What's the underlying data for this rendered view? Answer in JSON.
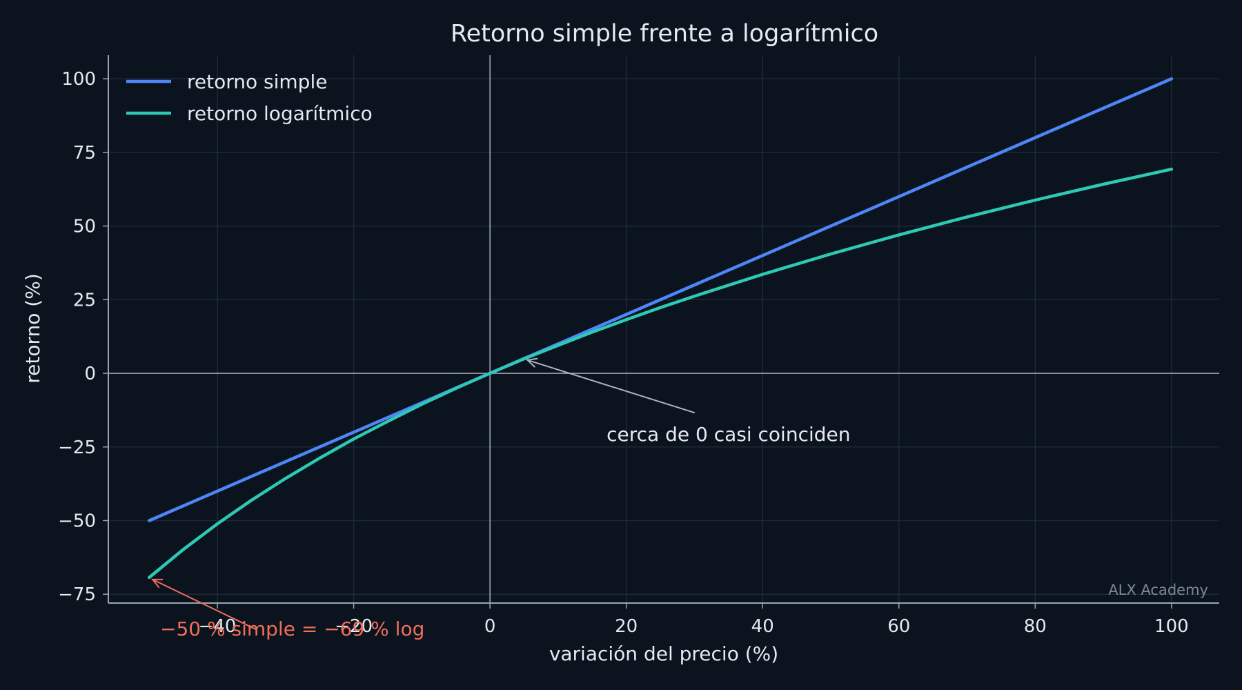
{
  "chart_data": {
    "type": "line",
    "title": "Retorno simple frente a logarítmico",
    "xlabel": "variación del precio (%)",
    "ylabel": "retorno (%)",
    "xlim": [
      -56,
      107
    ],
    "ylim": [
      -78,
      108
    ],
    "xticks": [
      -40,
      -20,
      0,
      20,
      40,
      60,
      80,
      100
    ],
    "yticks": [
      -75,
      -50,
      -25,
      0,
      25,
      50,
      75,
      100
    ],
    "xtick_labels": [
      "−40",
      "−20",
      "0",
      "20",
      "40",
      "60",
      "80",
      "100"
    ],
    "ytick_labels": [
      "−75",
      "−50",
      "−25",
      "0",
      "25",
      "50",
      "75",
      "100"
    ],
    "grid": true,
    "legend_position": "top-left",
    "series": [
      {
        "name": "retorno simple",
        "color": "#4f86f7",
        "x": [
          -50,
          -40,
          -30,
          -20,
          -10,
          0,
          10,
          20,
          30,
          40,
          50,
          60,
          70,
          80,
          90,
          100
        ],
        "y": [
          -50,
          -40,
          -30,
          -20,
          -10,
          0,
          10,
          20,
          30,
          40,
          50,
          60,
          70,
          80,
          90,
          100
        ]
      },
      {
        "name": "retorno logarítmico",
        "color": "#2ec9b4",
        "x": [
          -50,
          -45,
          -40,
          -35,
          -30,
          -25,
          -20,
          -15,
          -10,
          -5,
          0,
          5,
          10,
          15,
          20,
          25,
          30,
          40,
          50,
          60,
          70,
          80,
          90,
          100
        ],
        "y": [
          -69.3,
          -59.8,
          -51.1,
          -43.1,
          -35.7,
          -28.8,
          -22.3,
          -16.3,
          -10.5,
          -5.1,
          0,
          4.9,
          9.5,
          14.0,
          18.2,
          22.3,
          26.2,
          33.6,
          40.5,
          47.0,
          53.1,
          58.8,
          64.2,
          69.3
        ]
      }
    ],
    "annotations": [
      {
        "text": "cerca de 0 casi coinciden",
        "point": [
          5.5,
          4.5
        ],
        "text_at": [
          35,
          -23
        ],
        "color": "#aab3c0"
      },
      {
        "text": "−50 % simple = −69 % log",
        "point": [
          -49.5,
          -70
        ],
        "text_at": [
          -29,
          -89
        ],
        "color": "#ef6f5a"
      }
    ],
    "watermark": "ALX Academy",
    "colors": {
      "background": "#0b131e",
      "grid": "#1e2a38",
      "axis": "#9aa4b2",
      "text": "#e6e9ef"
    }
  }
}
